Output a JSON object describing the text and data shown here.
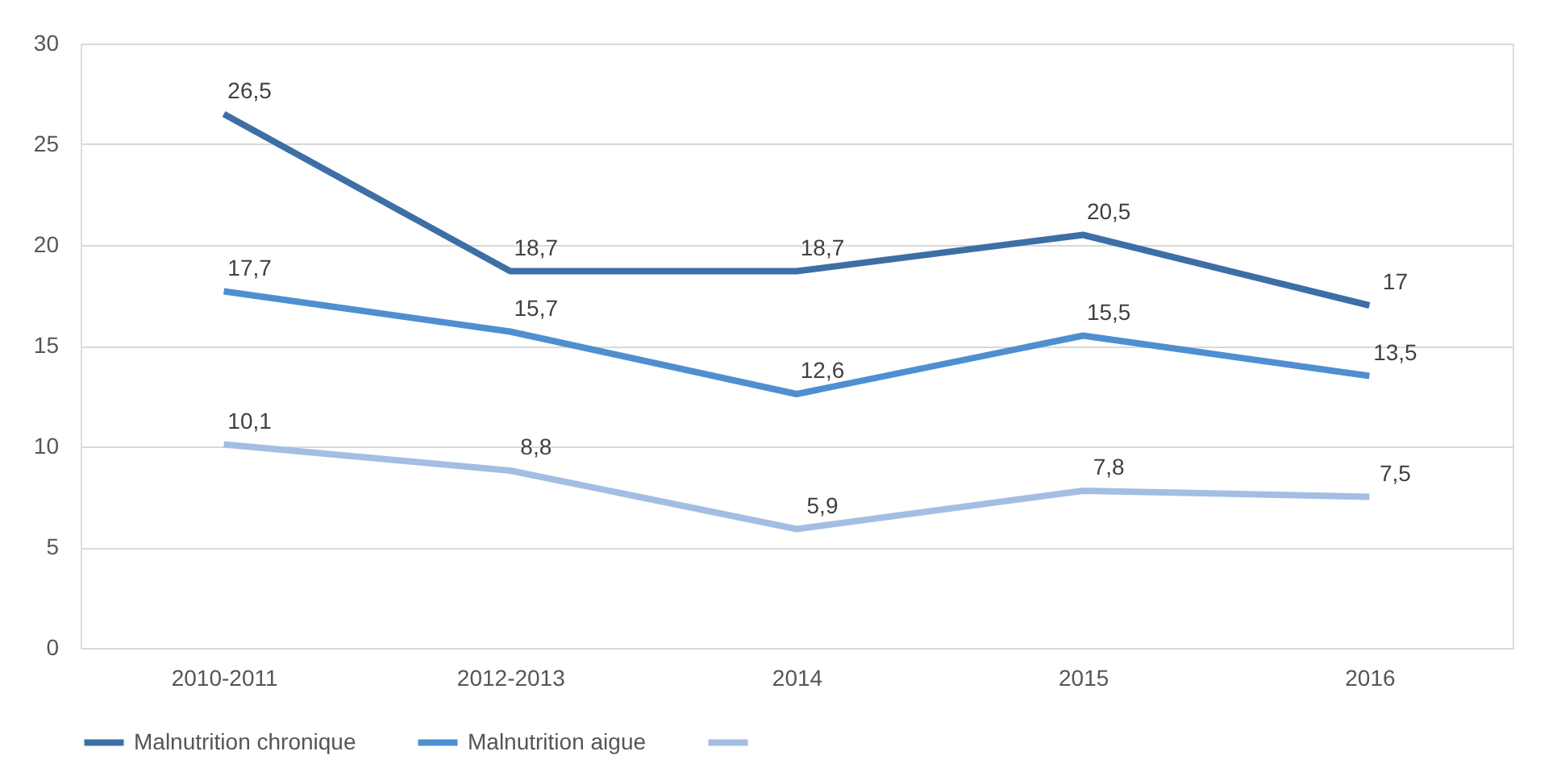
{
  "chart_data": {
    "type": "line",
    "categories": [
      "2010-2011",
      "2012-2013",
      "2014",
      "2015",
      "2016"
    ],
    "series": [
      {
        "name": "Malnutrition chronique",
        "color": "#3d6fa6",
        "values": [
          26.5,
          18.7,
          18.7,
          20.5,
          17
        ],
        "value_labels": [
          "26,5",
          "18,7",
          "18,7",
          "20,5",
          "17"
        ]
      },
      {
        "name": "Malnutrition aigue",
        "color": "#4f8fd0",
        "values": [
          17.7,
          15.7,
          12.6,
          15.5,
          13.5
        ],
        "value_labels": [
          "17,7",
          "15,7",
          "12,6",
          "15,5",
          "13,5"
        ]
      },
      {
        "name": null,
        "color": "#a4bde3",
        "values": [
          10.1,
          8.8,
          5.9,
          7.8,
          7.5
        ],
        "value_labels": [
          "10,1",
          "8,8",
          "5,9",
          "7,8",
          "7,5"
        ]
      }
    ],
    "ylim": [
      0,
      30
    ],
    "yticks": [
      0,
      5,
      10,
      15,
      20,
      25,
      30
    ],
    "grid": "y",
    "legend": "bottom",
    "marker": "none",
    "line_style": "solid"
  }
}
